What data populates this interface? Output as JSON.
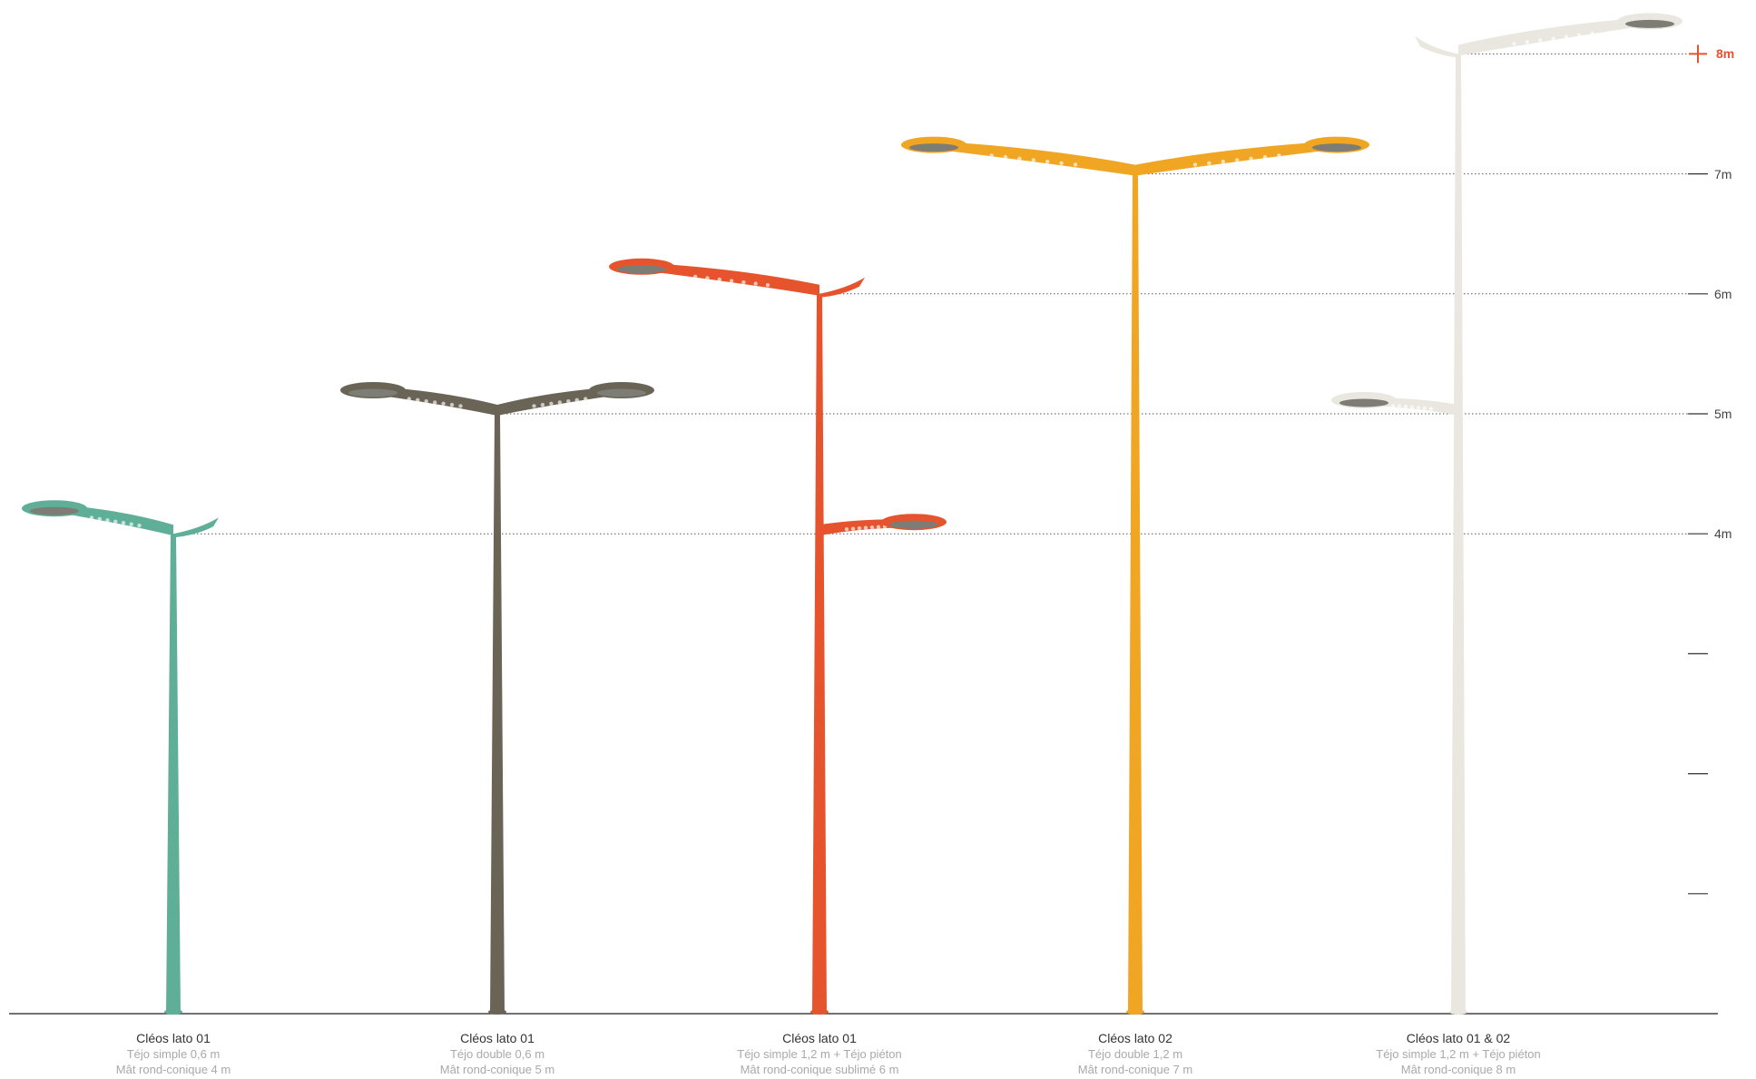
{
  "colors": {
    "background": "#ffffff",
    "ground": "#444444",
    "tick": "#333333",
    "gridline": "#555555",
    "max_marker": "#e8512b",
    "head_lens": "#7d7d75"
  },
  "scale": {
    "unit": "m",
    "max_meters": 8,
    "labels": [
      {
        "meters": 4,
        "text": "4m"
      },
      {
        "meters": 5,
        "text": "5m"
      },
      {
        "meters": 6,
        "text": "6m"
      },
      {
        "meters": 7,
        "text": "7m"
      },
      {
        "meters": 8,
        "text": "8m",
        "highlight": true
      }
    ],
    "unlabeled_ticks_meters": [
      1,
      2,
      3
    ]
  },
  "poles": [
    {
      "name": "Cléos lato 01",
      "bracket": "Téjo simple 0,6 m",
      "mast": "Mât rond-conique 4 m",
      "height_m": 4,
      "color": "#5fae97",
      "arms": [
        {
          "height_m": 4,
          "type": "single",
          "reach_m": 0.6
        }
      ]
    },
    {
      "name": "Cléos lato 01",
      "bracket": "Téjo double 0,6 m",
      "mast": "Mât rond-conique 5 m",
      "height_m": 5,
      "color": "#6a6456",
      "arms": [
        {
          "height_m": 5,
          "type": "double",
          "reach_m": 0.6
        }
      ]
    },
    {
      "name": "Cléos lato 01",
      "bracket": "Téjo simple 1,2 m + Téjo piéton",
      "mast": "Mât rond-conique sublimé 6 m",
      "height_m": 6,
      "color": "#e6542d",
      "arms": [
        {
          "height_m": 6,
          "type": "single",
          "reach_m": 1.2
        },
        {
          "height_m": 4,
          "type": "pedestrian",
          "reach_m": 0.6
        }
      ]
    },
    {
      "name": "Cléos lato 02",
      "bracket": "Téjo double 1,2 m",
      "mast": "Mât rond-conique 7 m",
      "height_m": 7,
      "color": "#f0a623",
      "arms": [
        {
          "height_m": 7,
          "type": "double",
          "reach_m": 1.2
        }
      ]
    },
    {
      "name": "Cléos lato 01 & 02",
      "bracket": "Téjo simple 1,2 m + Téjo piéton",
      "mast": "Mât rond-conique 8 m",
      "height_m": 8,
      "color": "#e9e7df",
      "arms": [
        {
          "height_m": 8,
          "type": "single-right",
          "reach_m": 1.2
        },
        {
          "height_m": 5,
          "type": "pedestrian-left",
          "reach_m": 0.6
        }
      ]
    }
  ]
}
